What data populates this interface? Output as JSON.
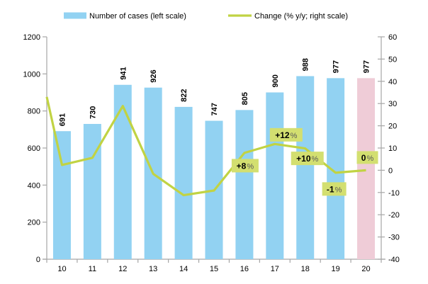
{
  "chart_data": {
    "type": "combo",
    "title": "",
    "categories": [
      "10",
      "11",
      "12",
      "13",
      "14",
      "15",
      "16",
      "17",
      "18",
      "19",
      "20"
    ],
    "series": [
      {
        "name": "Number of cases (left scale)",
        "type": "bar",
        "axis": "left",
        "values": [
          691,
          730,
          941,
          926,
          822,
          747,
          805,
          900,
          988,
          977,
          977
        ],
        "color": "#92d2f2",
        "highlight_index": 10,
        "highlight_color": "#efccd7",
        "value_labels": true
      },
      {
        "name": "Change (% y/y; right scale)",
        "type": "line",
        "axis": "right",
        "values": [
          2.4,
          5.6,
          28.9,
          -1.6,
          -11.2,
          -9.1,
          7.8,
          11.8,
          9.8,
          -1.1,
          0
        ],
        "clipped_start_value": 33,
        "color": "#c1d343",
        "label_box_color": "#d3df70",
        "point_labels": [
          {
            "category": "16",
            "text": "+8",
            "suffix": "%"
          },
          {
            "category": "17",
            "text": "+12",
            "suffix": "%"
          },
          {
            "category": "18",
            "text": "+10",
            "suffix": "%"
          },
          {
            "category": "19",
            "text": "-1",
            "suffix": "%"
          },
          {
            "category": "20",
            "text": "0",
            "suffix": "%"
          }
        ]
      }
    ],
    "left_axis": {
      "min": 0,
      "max": 1200,
      "step": 200,
      "ticks": [
        "0",
        "200",
        "400",
        "600",
        "800",
        "1000",
        "1200"
      ]
    },
    "right_axis": {
      "min": -40,
      "max": 60,
      "step": 10,
      "ticks": [
        "-40",
        "-30",
        "-20",
        "-10",
        "0",
        "10",
        "20",
        "30",
        "40",
        "50",
        "60"
      ]
    },
    "legend_position": "top",
    "grid": false,
    "axis_color": "#a6a6a6",
    "text_color": "#000000",
    "percent_sign_color": "#595959"
  }
}
